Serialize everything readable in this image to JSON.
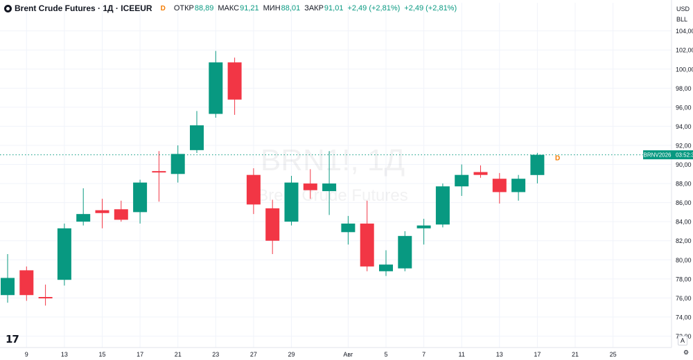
{
  "legend": {
    "title": "Brent Crude Futures · 1Д · ICEEUR",
    "delay_badge": "D",
    "open_label": "ОТКР",
    "open_value": "88,89",
    "high_label": "МАКС",
    "high_value": "91,21",
    "low_label": "МИН",
    "low_value": "88,01",
    "close_label": "ЗАКР",
    "close_value": "91,01",
    "change_1": "+2,49 (+2,81%)",
    "change_2": "+2,49 (+2,81%)"
  },
  "currency": {
    "code": "USD",
    "unit": "BLL"
  },
  "watermark": {
    "symbol": "BRN1!, 1Д",
    "name": "Brent Crude Futures"
  },
  "price_marker": {
    "symbol": "BRNV2026",
    "countdown": "03:52:3",
    "price": 91.01
  },
  "controls": {
    "auto_label": "A",
    "settings_label": "⚙"
  },
  "colors": {
    "up": "#089981",
    "down": "#f23645",
    "grid": "#f0f3fa",
    "marker_line": "#089981"
  },
  "chart_data": {
    "type": "candlestick",
    "y_ticks": [
      "72,00",
      "74,00",
      "76,00",
      "78,00",
      "80,00",
      "82,00",
      "84,00",
      "86,00",
      "88,00",
      "90,00",
      "92,00",
      "94,00",
      "96,00",
      "98,00",
      "100,00",
      "102,00",
      "104,00"
    ],
    "ylim": [
      70.8,
      105.5
    ],
    "x_ticks": [
      "9",
      "13",
      "15",
      "17",
      "21",
      "23",
      "27",
      "29",
      "Авг",
      "5",
      "7",
      "11",
      "13",
      "17",
      "21",
      "25"
    ],
    "x_tick_slots": [
      1,
      3,
      5,
      7,
      9,
      11,
      13,
      15,
      18,
      20,
      22,
      24,
      26,
      28,
      30,
      32
    ],
    "grid": true,
    "candles": [
      {
        "o": 76.3,
        "h": 80.6,
        "l": 75.5,
        "c": 78.1
      },
      {
        "o": 78.9,
        "h": 79.3,
        "l": 75.7,
        "c": 76.3
      },
      {
        "o": 76.1,
        "h": 77.4,
        "l": 75.2,
        "c": 76.0
      },
      {
        "o": 77.9,
        "h": 83.8,
        "l": 77.3,
        "c": 83.3
      },
      {
        "o": 84.0,
        "h": 87.5,
        "l": 83.6,
        "c": 84.8
      },
      {
        "o": 85.2,
        "h": 86.4,
        "l": 83.3,
        "c": 84.9
      },
      {
        "o": 85.3,
        "h": 86.2,
        "l": 84.0,
        "c": 84.2
      },
      {
        "o": 85.0,
        "h": 88.4,
        "l": 83.8,
        "c": 88.1
      },
      {
        "o": 89.3,
        "h": 91.4,
        "l": 86.1,
        "c": 89.2
      },
      {
        "o": 89.0,
        "h": 92.0,
        "l": 88.1,
        "c": 91.1
      },
      {
        "o": 91.5,
        "h": 95.6,
        "l": 91.2,
        "c": 94.1
      },
      {
        "o": 95.3,
        "h": 101.9,
        "l": 94.9,
        "c": 100.7
      },
      {
        "o": 100.7,
        "h": 101.2,
        "l": 95.2,
        "c": 96.8
      },
      {
        "o": 88.9,
        "h": 89.6,
        "l": 84.8,
        "c": 85.8
      },
      {
        "o": 85.4,
        "h": 86.3,
        "l": 80.6,
        "c": 82.0
      },
      {
        "o": 84.0,
        "h": 88.8,
        "l": 83.6,
        "c": 88.1
      },
      {
        "o": 88.0,
        "h": 89.5,
        "l": 86.4,
        "c": 87.3
      },
      {
        "o": 87.2,
        "h": 91.4,
        "l": 84.7,
        "c": 88.0
      },
      {
        "o": 82.9,
        "h": 84.6,
        "l": 81.6,
        "c": 83.8
      },
      {
        "o": 83.8,
        "h": 86.2,
        "l": 78.8,
        "c": 79.3
      },
      {
        "o": 78.8,
        "h": 81.0,
        "l": 78.3,
        "c": 79.5
      },
      {
        "o": 79.1,
        "h": 83.0,
        "l": 78.8,
        "c": 82.5
      },
      {
        "o": 83.3,
        "h": 84.3,
        "l": 81.6,
        "c": 83.6
      },
      {
        "o": 83.7,
        "h": 88.0,
        "l": 83.4,
        "c": 87.7
      },
      {
        "o": 87.7,
        "h": 90.0,
        "l": 86.7,
        "c": 88.9
      },
      {
        "o": 89.2,
        "h": 89.9,
        "l": 88.6,
        "c": 88.9
      },
      {
        "o": 88.5,
        "h": 89.1,
        "l": 85.9,
        "c": 87.1
      },
      {
        "o": 87.1,
        "h": 88.9,
        "l": 86.2,
        "c": 88.5
      },
      {
        "o": 88.89,
        "h": 91.21,
        "l": 88.01,
        "c": 91.01
      }
    ],
    "candle_slots": [
      0,
      1,
      2,
      3,
      4,
      5,
      6,
      7,
      8,
      9,
      10,
      11,
      12,
      13,
      14,
      15,
      16,
      17,
      18,
      19,
      20,
      21,
      22,
      23,
      24,
      25,
      26,
      27,
      28
    ]
  }
}
